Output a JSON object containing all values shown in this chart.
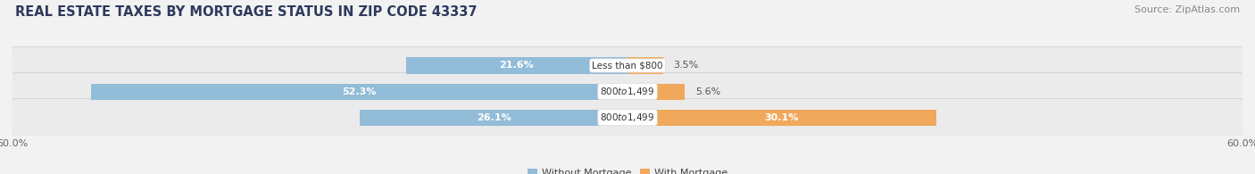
{
  "title": "REAL ESTATE TAXES BY MORTGAGE STATUS IN ZIP CODE 43337",
  "source": "Source: ZipAtlas.com",
  "rows": [
    {
      "label": "Less than $800",
      "without_pct": 21.6,
      "with_pct": 3.5
    },
    {
      "label": "$800 to $1,499",
      "without_pct": 52.3,
      "with_pct": 5.6
    },
    {
      "label": "$800 to $1,499",
      "without_pct": 26.1,
      "with_pct": 30.1
    }
  ],
  "xlim_max": 60.0,
  "color_without": "#92bcd8",
  "color_with": "#f0a85c",
  "color_with_light": "#f5c48a",
  "bg_color": "#f2f2f2",
  "bar_bg_color": "#e2e2e2",
  "strip_bg_color": "#e8e8e8",
  "title_fontsize": 10.5,
  "source_fontsize": 8,
  "label_fontsize": 7.5,
  "pct_fontsize": 8,
  "bar_height": 0.62
}
